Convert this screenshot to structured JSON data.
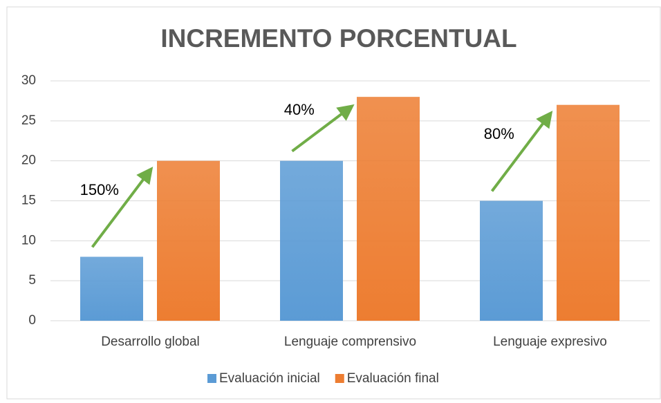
{
  "chart_data": {
    "type": "bar",
    "title": "INCREMENTO PORCENTUAL",
    "categories": [
      "Desarrollo global",
      "Lenguaje comprensivo",
      "Lenguaje expresivo"
    ],
    "series": [
      {
        "name": "Evaluación inicial",
        "color": "#5b9bd5",
        "values": [
          8,
          20,
          15
        ]
      },
      {
        "name": "Evaluación final",
        "color": "#ed7d31",
        "values": [
          20,
          28,
          27
        ]
      }
    ],
    "annotations": [
      "150%",
      "40%",
      "80%"
    ],
    "annotation_color": "#70ad47",
    "ylim": [
      0,
      30
    ],
    "yticks": [
      0,
      5,
      10,
      15,
      20,
      25,
      30
    ],
    "grid": true,
    "legend": "bottom"
  }
}
